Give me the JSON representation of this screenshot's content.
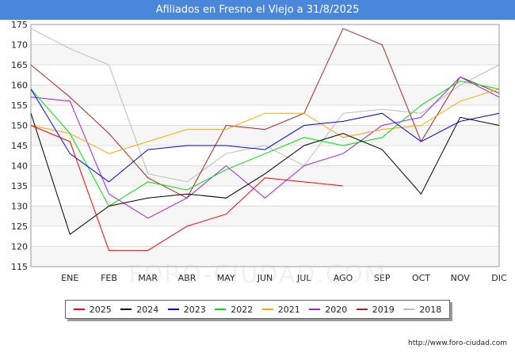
{
  "header": {
    "title": "Afiliados en Fresno el Viejo a 31/8/2025"
  },
  "footer": {
    "source": "http://www.foro-ciudad.com"
  },
  "watermark": "FORO-CIUDAD.COM",
  "chart_data": {
    "type": "line",
    "title": "Afiliados en Fresno el Viejo a 31/8/2025",
    "categories": [
      "",
      "ENE",
      "FEB",
      "MAR",
      "ABR",
      "MAY",
      "JUN",
      "JUL",
      "AGO",
      "SEP",
      "OCT",
      "NOV",
      "DIC"
    ],
    "ylim": [
      115,
      175
    ],
    "yticks": [
      115,
      120,
      125,
      130,
      135,
      140,
      145,
      150,
      155,
      160,
      165,
      170,
      175
    ],
    "grid": true,
    "legend_position": "bottom",
    "series": [
      {
        "name": "2025",
        "color": "#ff0000",
        "values": [
          150,
          146,
          119,
          119,
          125,
          128,
          137,
          136,
          135,
          null,
          null,
          null,
          null
        ]
      },
      {
        "name": "2024",
        "color": "#000000",
        "values": [
          153,
          123,
          130,
          132,
          133,
          132,
          138,
          145,
          148,
          144,
          133,
          152,
          150
        ]
      },
      {
        "name": "2023",
        "color": "#0000ff",
        "values": [
          159,
          143,
          136,
          144,
          145,
          145,
          144,
          150,
          151,
          153,
          146,
          151,
          153
        ]
      },
      {
        "name": "2022",
        "color": "#00dd00",
        "values": [
          159,
          148,
          130,
          136,
          134,
          139,
          143,
          147,
          145,
          147,
          155,
          161,
          159
        ]
      },
      {
        "name": "2021",
        "color": "#ffa500",
        "values": [
          150,
          148,
          143,
          146,
          149,
          149,
          153,
          153,
          147,
          149,
          150,
          156,
          159
        ]
      },
      {
        "name": "2020",
        "color": "#a020f0",
        "values": [
          157,
          156,
          133,
          127,
          132,
          140,
          132,
          140,
          143,
          150,
          152,
          162,
          157
        ]
      },
      {
        "name": "2019",
        "color": "#aa2222",
        "values": [
          165,
          157,
          148,
          137,
          132,
          150,
          149,
          153,
          174,
          170,
          146,
          162,
          158
        ]
      },
      {
        "name": "2018",
        "color": "#bbbbbb",
        "values": [
          174,
          169,
          165,
          138,
          136,
          143,
          145,
          140,
          153,
          154,
          153,
          160,
          165
        ]
      }
    ]
  }
}
